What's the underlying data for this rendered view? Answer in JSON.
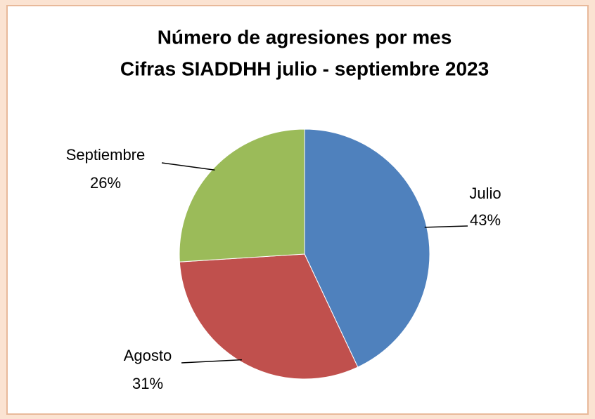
{
  "chart_data": {
    "type": "pie",
    "title": "Número de agresiones por mes",
    "subtitle": "Cifras SIADDHH julio - septiembre 2023",
    "categories": [
      "Julio",
      "Agosto",
      "Septiembre"
    ],
    "values": [
      43,
      31,
      26
    ],
    "value_labels": [
      "43%",
      "31%",
      "26%"
    ],
    "colors": [
      "#4f81bd",
      "#c0504d",
      "#9bbb59"
    ]
  }
}
